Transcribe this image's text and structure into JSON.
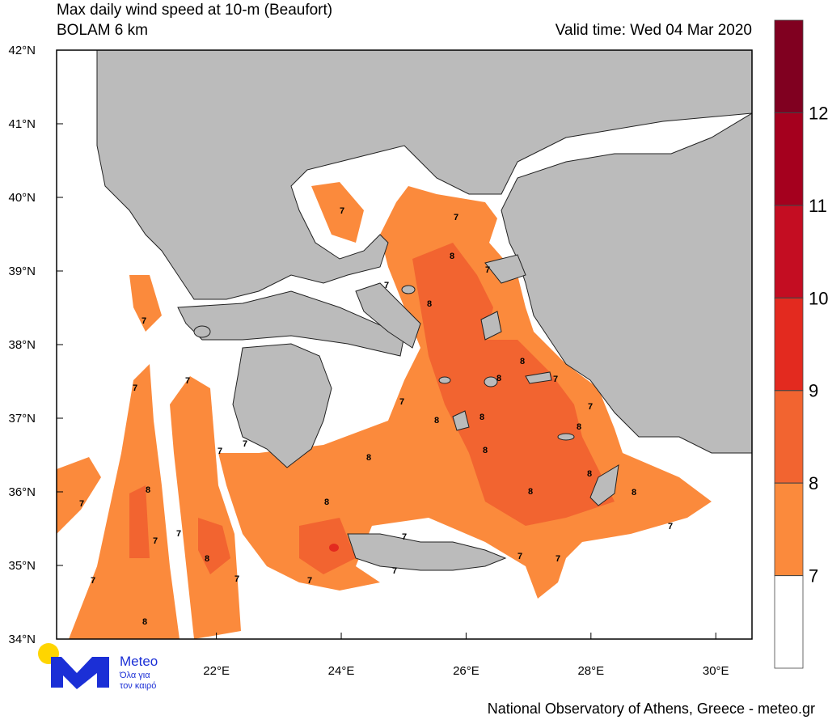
{
  "title": "Max daily wind speed at 10-m (Beaufort)",
  "subtitle": "BOLAM 6 km",
  "valid_time": "Valid time: Wed 04 Mar 2020",
  "map": {
    "xlim": [
      19.44,
      30.58
    ],
    "ylim": [
      34,
      42
    ],
    "xticks": [
      {
        "value": 22,
        "label": "22°E"
      },
      {
        "value": 24,
        "label": "24°E"
      },
      {
        "value": 26,
        "label": "26°E"
      },
      {
        "value": 28,
        "label": "28°E"
      },
      {
        "value": 30,
        "label": "30°E"
      }
    ],
    "yticks": [
      {
        "value": 34,
        "label": "34°N"
      },
      {
        "value": 35,
        "label": "35°N"
      },
      {
        "value": 36,
        "label": "36°N"
      },
      {
        "value": 37,
        "label": "37°N"
      },
      {
        "value": 38,
        "label": "38°N"
      },
      {
        "value": 39,
        "label": "39°N"
      },
      {
        "value": 40,
        "label": "40°N"
      },
      {
        "value": 41,
        "label": "41°N"
      },
      {
        "value": 42,
        "label": "42°N"
      }
    ],
    "land_color": "#bbbbbb",
    "contour_labels": [
      7,
      8,
      7,
      7,
      8,
      7,
      7,
      8,
      8,
      7,
      7,
      7,
      7,
      7,
      8,
      8,
      8,
      7,
      7,
      8,
      8,
      8,
      8,
      8,
      7,
      8,
      8,
      7,
      7,
      7,
      8,
      7,
      7,
      7,
      7,
      7,
      7,
      7,
      8
    ]
  },
  "colorbar": {
    "lim": [
      6,
      13
    ],
    "levels": [
      7,
      8,
      9,
      10,
      11,
      12
    ],
    "colors": [
      "#ffffff",
      "#fb8a3c",
      "#f26430",
      "#e32a1f",
      "#c40d22",
      "#a5001e",
      "#800020"
    ]
  },
  "logo": {
    "name": "Meteo",
    "tagline": [
      "Όλα για",
      "τον καιρό"
    ]
  },
  "footer": "National Observatory of Athens, Greece - meteo.gr"
}
